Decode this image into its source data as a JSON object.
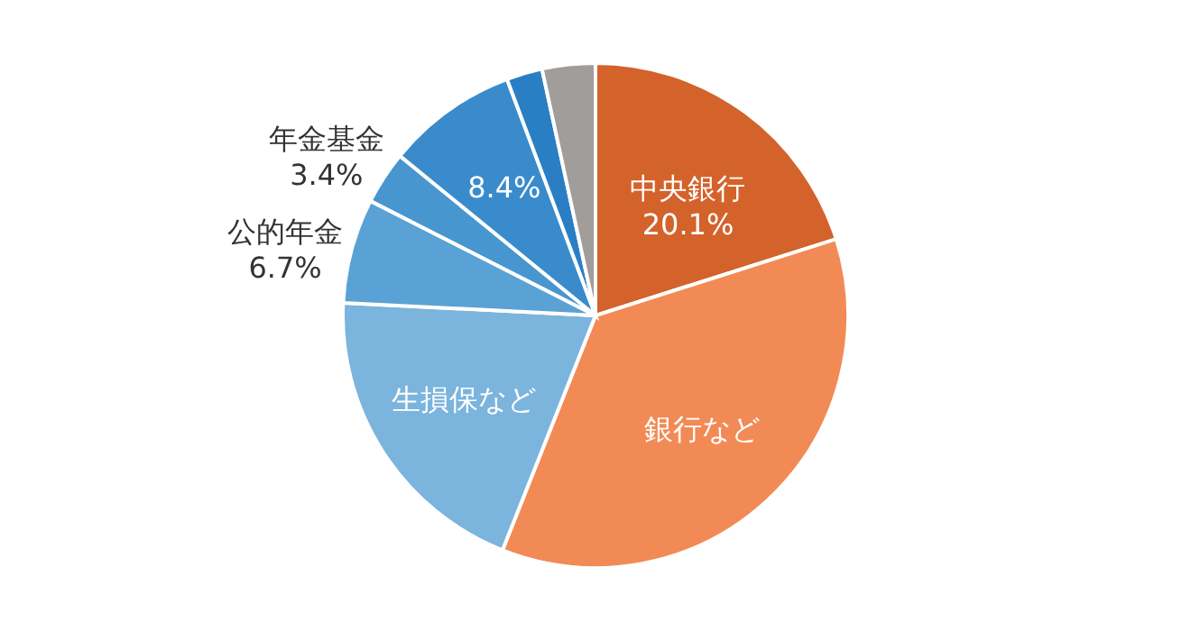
{
  "chart_data": {
    "type": "pie",
    "categories": [
      "中央銀行",
      "銀行など",
      "生損保など",
      "公的年金",
      "年金基金",
      null,
      null,
      null
    ],
    "values": [
      20.1,
      35.9,
      19.8,
      6.7,
      3.4,
      8.4,
      2.3,
      3.4
    ],
    "colors": [
      "#d4622b",
      "#f28a55",
      "#7bb4dc",
      "#5aa2d5",
      "#4896cf",
      "#3a8bcb",
      "#2a7fc4",
      "#a09d9b"
    ],
    "value_labels": [
      "20.1%",
      null,
      null,
      "6.7%",
      "3.4%",
      "8.4%",
      null,
      null
    ]
  }
}
